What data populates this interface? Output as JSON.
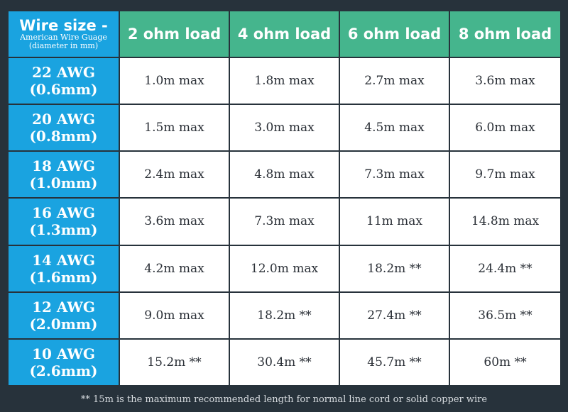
{
  "table": {
    "corner": {
      "title": "Wire size -",
      "subtitle": "American Wire Guage",
      "note": "(diameter in mm)"
    },
    "columns": [
      "2 ohm load",
      "4 ohm load",
      "6 ohm load",
      "8 ohm load"
    ],
    "rows": [
      {
        "gauge": "22 AWG",
        "diameter": "(0.6mm)",
        "values": [
          "1.0m max",
          "1.8m max",
          "2.7m max",
          "3.6m max"
        ]
      },
      {
        "gauge": "20 AWG",
        "diameter": "(0.8mm)",
        "values": [
          "1.5m max",
          "3.0m max",
          "4.5m max",
          "6.0m max"
        ]
      },
      {
        "gauge": "18 AWG",
        "diameter": "(1.0mm)",
        "values": [
          "2.4m max",
          "4.8m max",
          "7.3m max",
          "9.7m max"
        ]
      },
      {
        "gauge": "16 AWG",
        "diameter": "(1.3mm)",
        "values": [
          "3.6m max",
          "7.3m max",
          "11m max",
          "14.8m max"
        ]
      },
      {
        "gauge": "14 AWG",
        "diameter": "(1.6mm)",
        "values": [
          "4.2m max",
          "12.0m max",
          "18.2m **",
          "24.4m **"
        ]
      },
      {
        "gauge": "12 AWG",
        "diameter": "(2.0mm)",
        "values": [
          "9.0m max",
          "18.2m **",
          "27.4m **",
          "36.5m **"
        ]
      },
      {
        "gauge": "10 AWG",
        "diameter": "(2.6mm)",
        "values": [
          "15.2m **",
          "30.4m **",
          "45.7m **",
          "60m **"
        ]
      }
    ]
  },
  "footnote": "** 15m is the maximum recommended length for normal line cord or solid copper wire",
  "colors": {
    "background": "#27323b",
    "header_blue": "#1aa3e0",
    "header_green": "#45b58d",
    "cell_bg": "#ffffff"
  }
}
